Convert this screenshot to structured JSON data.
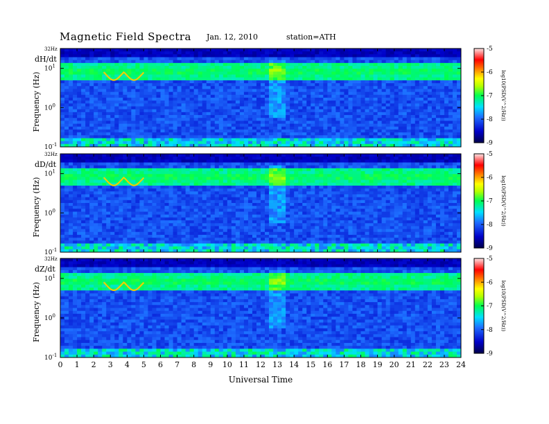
{
  "header": {
    "title": "Magnetic Field Spectra",
    "date": "Jan. 12, 2010",
    "station": "station=ATH"
  },
  "chart_data": {
    "type": "heatmap",
    "xlabel": "Universal Time",
    "x_ticks": [
      "0",
      "1",
      "2",
      "3",
      "4",
      "5",
      "6",
      "7",
      "8",
      "9",
      "10",
      "11",
      "12",
      "13",
      "14",
      "15",
      "16",
      "17",
      "18",
      "19",
      "20",
      "21",
      "22",
      "23",
      "24"
    ],
    "xlim": [
      0,
      24
    ],
    "panels": [
      {
        "name": "dH/dt",
        "ylabel": "Frequency (Hz)",
        "y_top_label": "32Hz",
        "y_ticks": [
          {
            "base": "10",
            "exp": "1",
            "value": 10
          },
          {
            "base": "10",
            "exp": "0",
            "value": 1
          },
          {
            "base": "10",
            "exp": "-1",
            "value": 0.1
          }
        ],
        "ylim": [
          0.1,
          32
        ],
        "yscale": "log",
        "colorbar": {
          "label": "log10(PSD(V^2/Hz))",
          "ticks": [
            "-5",
            "-6",
            "-7",
            "-8",
            "-9"
          ],
          "range": [
            -9,
            -5
          ]
        }
      },
      {
        "name": "dD/dt",
        "ylabel": "Frequency (Hz)",
        "y_top_label": "32Hz",
        "y_ticks": [
          {
            "base": "10",
            "exp": "1",
            "value": 10
          },
          {
            "base": "10",
            "exp": "0",
            "value": 1
          },
          {
            "base": "10",
            "exp": "-1",
            "value": 0.1
          }
        ],
        "ylim": [
          0.1,
          32
        ],
        "yscale": "log",
        "colorbar": {
          "label": "log10(PSD(V^2/Hz))",
          "ticks": [
            "-5",
            "-6",
            "-7",
            "-8",
            "-9"
          ],
          "range": [
            -9,
            -5
          ]
        }
      },
      {
        "name": "dZ/dt",
        "ylabel": "Frequency (Hz)",
        "y_top_label": "32Hz",
        "y_ticks": [
          {
            "base": "10",
            "exp": "1",
            "value": 10
          },
          {
            "base": "10",
            "exp": "0",
            "value": 1
          },
          {
            "base": "10",
            "exp": "-1",
            "value": 0.1
          }
        ],
        "ylim": [
          0.1,
          32
        ],
        "yscale": "log",
        "colorbar": {
          "label": "log10(PSD(V^2/Hz))",
          "ticks": [
            "-5",
            "-6",
            "-7",
            "-8",
            "-9"
          ],
          "range": [
            -9,
            -5
          ]
        }
      }
    ],
    "colors": {
      "low": "#00007a",
      "mid_low": "#1e50f0",
      "mid": "#00ff60",
      "high": "#ffee00",
      "very_high": "#ff0000",
      "peak": "#ffffff"
    }
  }
}
